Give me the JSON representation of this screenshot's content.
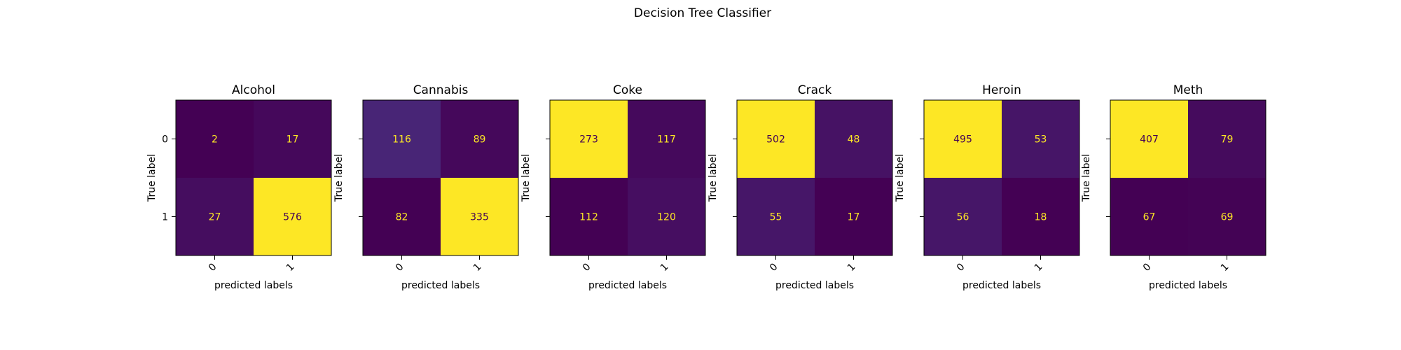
{
  "figure": {
    "title": "Decision Tree Classifier"
  },
  "chart_data": [
    {
      "type": "heatmap",
      "title": "Alcohol",
      "xlabel": "predicted labels",
      "ylabel": "True label",
      "x_ticks": [
        "0",
        "1"
      ],
      "y_ticks": [
        "0",
        "1"
      ],
      "matrix": [
        [
          2,
          17
        ],
        [
          27,
          576
        ]
      ]
    },
    {
      "type": "heatmap",
      "title": "Cannabis",
      "xlabel": "predicted labels",
      "ylabel": "True label",
      "x_ticks": [
        "0",
        "1"
      ],
      "y_ticks": [
        "0",
        "1"
      ],
      "matrix": [
        [
          116,
          89
        ],
        [
          82,
          335
        ]
      ]
    },
    {
      "type": "heatmap",
      "title": "Coke",
      "xlabel": "predicted labels",
      "ylabel": "True label",
      "x_ticks": [
        "0",
        "1"
      ],
      "y_ticks": [
        "0",
        "1"
      ],
      "matrix": [
        [
          273,
          117
        ],
        [
          112,
          120
        ]
      ]
    },
    {
      "type": "heatmap",
      "title": "Crack",
      "xlabel": "predicted labels",
      "ylabel": "True label",
      "x_ticks": [
        "0",
        "1"
      ],
      "y_ticks": [
        "0",
        "1"
      ],
      "matrix": [
        [
          502,
          48
        ],
        [
          55,
          17
        ]
      ]
    },
    {
      "type": "heatmap",
      "title": "Heroin",
      "xlabel": "predicted labels",
      "ylabel": "True label",
      "x_ticks": [
        "0",
        "1"
      ],
      "y_ticks": [
        "0",
        "1"
      ],
      "matrix": [
        [
          495,
          53
        ],
        [
          56,
          18
        ]
      ]
    },
    {
      "type": "heatmap",
      "title": "Meth",
      "xlabel": "predicted labels",
      "ylabel": "True label",
      "x_ticks": [
        "0",
        "1"
      ],
      "y_ticks": [
        "0",
        "1"
      ],
      "matrix": [
        [
          407,
          79
        ],
        [
          67,
          69
        ]
      ]
    }
  ]
}
